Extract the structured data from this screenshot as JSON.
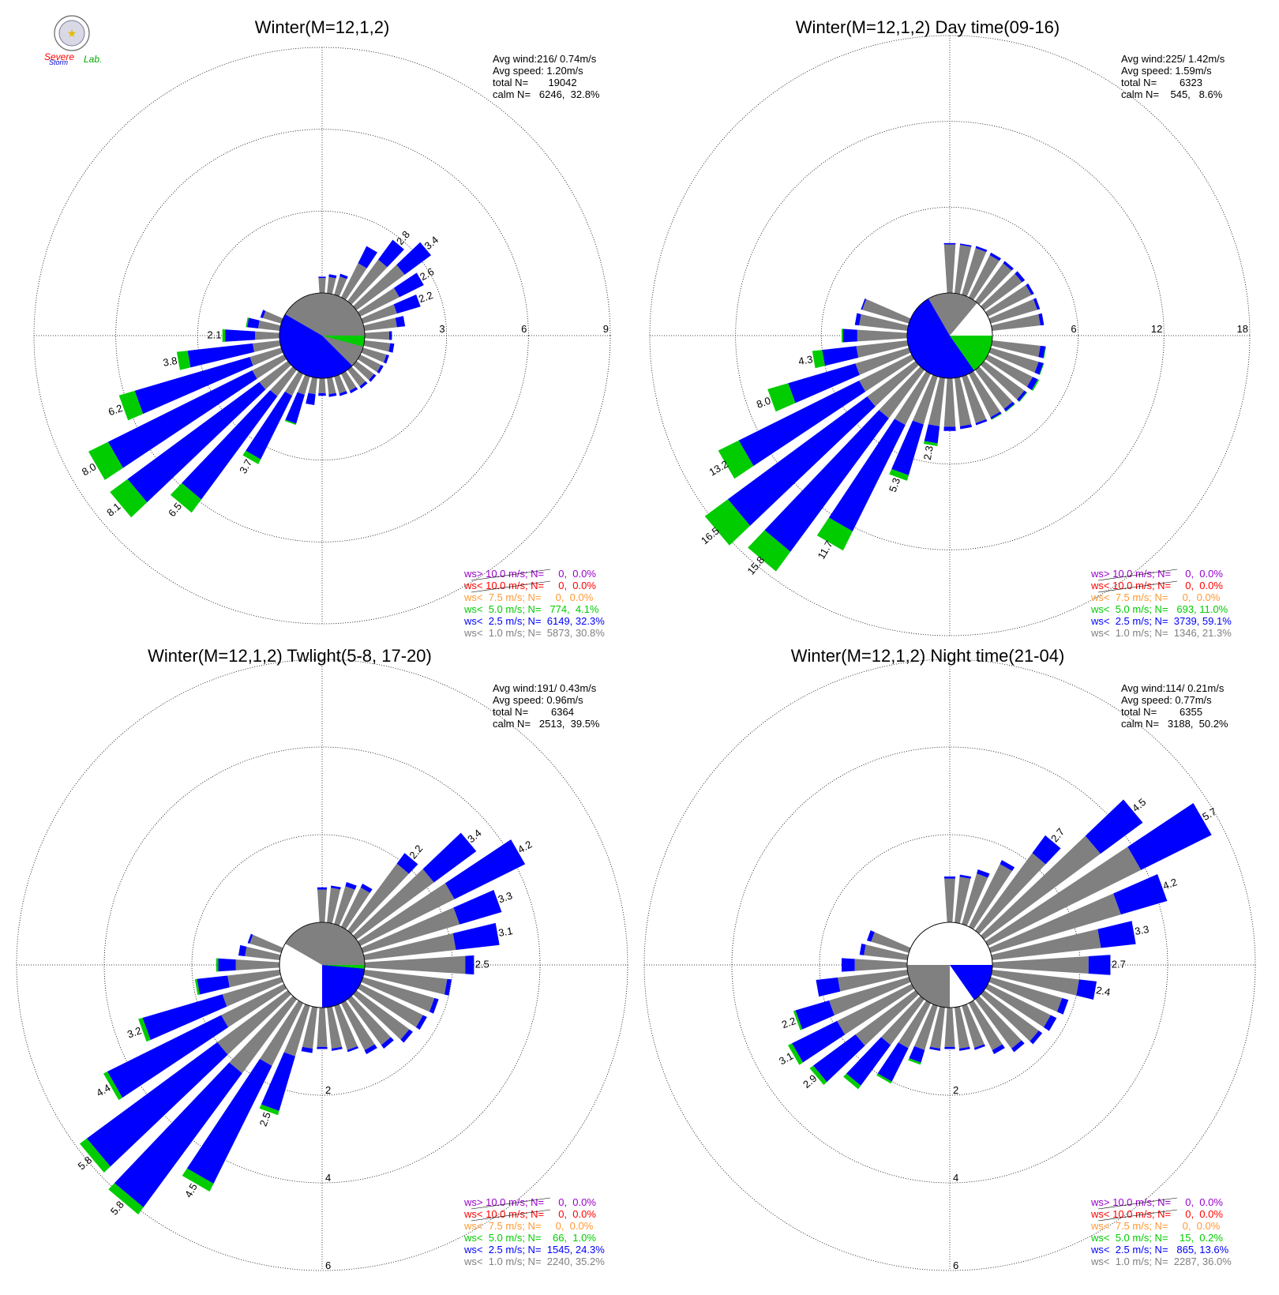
{
  "logo": {
    "text_line1": "Severe",
    "text_line2": "Storm",
    "text_line3": "Lab."
  },
  "colors": {
    "ws_gt_10": "#9900cc",
    "ws_lt_10": "#ff0000",
    "ws_lt_75": "#ff9933",
    "ws_lt_50": "#00cc00",
    "ws_lt_25": "#0000ff",
    "ws_lt_10_calm": "#808080"
  },
  "chart_data": [
    {
      "type": "windrose",
      "title": "Winter(M=12,1,2)",
      "stats": [
        "Avg wind:216/ 0.74m/s",
        "Avg speed: 1.20m/s",
        "total N=       19042",
        "calm N=   6246,  32.8%"
      ],
      "ring_labels": [
        "3",
        "6",
        "9"
      ],
      "ring_values": [
        3,
        6,
        9
      ],
      "legend": [
        "ws> 10.0 m/s; N=     0,  0.0%",
        "ws< 10.0 m/s; N=     0,  0.0%",
        "ws<  7.5 m/s; N=     0,  0.0%",
        "ws<  5.0 m/s; N=   774,  4.1%",
        "ws<  2.5 m/s; N=  6149, 32.3%",
        "ws<  1.0 m/s; N=  5873, 30.8%"
      ],
      "calm_pie": [
        {
          "bin": "ws<  1.0 m/s",
          "start": 300,
          "end": 495
        },
        {
          "bin": "ws<  2.5 m/s",
          "start": 135,
          "end": 300
        },
        {
          "bin": "ws<  5.0 m/s",
          "start": 90,
          "end": 105
        }
      ],
      "bars": [
        {
          "dir": 30,
          "v1": 1.4,
          "v2": 2.1,
          "v3": 2.1
        },
        {
          "dir": 40,
          "v1": 1.9,
          "v2": 2.8,
          "v3": 2.8,
          "label": "2.8"
        },
        {
          "dir": 50,
          "v1": 2.2,
          "v2": 3.4,
          "v3": 3.4,
          "label": "3.4"
        },
        {
          "dir": 60,
          "v1": 1.6,
          "v2": 2.6,
          "v3": 2.6,
          "label": "2.6"
        },
        {
          "dir": 70,
          "v1": 1.3,
          "v2": 2.2,
          "v3": 2.2,
          "label": "2.2"
        },
        {
          "dir": 80,
          "v1": 1.2,
          "v2": 1.5,
          "v3": 1.5
        },
        {
          "dir": 90,
          "v1": 0.9,
          "v2": 1.0,
          "v3": 1.0
        },
        {
          "dir": 100,
          "v1": 0.95,
          "v2": 1.1,
          "v3": 1.1
        },
        {
          "dir": 110,
          "v1": 0.9,
          "v2": 1.0,
          "v3": 1.0
        },
        {
          "dir": 120,
          "v1": 0.85,
          "v2": 0.95,
          "v3": 0.95
        },
        {
          "dir": 130,
          "v1": 0.8,
          "v2": 0.9,
          "v3": 0.9
        },
        {
          "dir": 140,
          "v1": 0.75,
          "v2": 0.85,
          "v3": 0.85
        },
        {
          "dir": 150,
          "v1": 0.7,
          "v2": 0.8,
          "v3": 0.8
        },
        {
          "dir": 160,
          "v1": 0.65,
          "v2": 0.75,
          "v3": 0.75
        },
        {
          "dir": 170,
          "v1": 0.6,
          "v2": 0.7,
          "v3": 0.7
        },
        {
          "dir": 180,
          "v1": 0.55,
          "v2": 0.65,
          "v3": 0.65
        },
        {
          "dir": 190,
          "v1": 0.6,
          "v2": 1.0,
          "v3": 1.0
        },
        {
          "dir": 200,
          "v1": 0.7,
          "v2": 1.8,
          "v3": 1.85
        },
        {
          "dir": 210,
          "v1": 0.9,
          "v2": 3.5,
          "v3": 3.7,
          "label": "3.7"
        },
        {
          "dir": 220,
          "v1": 1.2,
          "v2": 5.9,
          "v3": 6.5,
          "label": "6.5"
        },
        {
          "dir": 230,
          "v1": 1.3,
          "v2": 7.3,
          "v3": 8.1,
          "label": "8.1"
        },
        {
          "dir": 240,
          "v1": 1.3,
          "v2": 7.2,
          "v3": 8.0,
          "label": "8.0"
        },
        {
          "dir": 250,
          "v1": 1.2,
          "v2": 5.6,
          "v3": 6.2,
          "label": "6.2"
        },
        {
          "dir": 260,
          "v1": 1.0,
          "v2": 3.4,
          "v3": 3.8,
          "label": "3.8"
        },
        {
          "dir": 270,
          "v1": 0.9,
          "v2": 2.0,
          "v3": 2.1,
          "label": "2.1"
        },
        {
          "dir": 280,
          "v1": 0.8,
          "v2": 1.2,
          "v3": 1.25
        },
        {
          "dir": 290,
          "v1": 0.7,
          "v2": 0.8,
          "v3": 0.8
        },
        {
          "dir": 0,
          "v1": 0.55,
          "v2": 0.6,
          "v3": 0.6
        },
        {
          "dir": 10,
          "v1": 0.6,
          "v2": 0.7,
          "v3": 0.7
        },
        {
          "dir": 20,
          "v1": 0.7,
          "v2": 0.8,
          "v3": 0.8
        }
      ]
    },
    {
      "type": "windrose",
      "title": "Winter(M=12,1,2) Day time(09-16)",
      "stats": [
        "Avg wind:225/ 1.42m/s",
        "Avg speed: 1.59m/s",
        "total N=        6323",
        "calm N=    545,   8.6%"
      ],
      "ring_labels": [
        "6",
        "12",
        "18"
      ],
      "ring_values": [
        6,
        12,
        18
      ],
      "legend": [
        "ws> 10.0 m/s; N=     0,  0.0%",
        "ws< 10.0 m/s; N=     0,  0.0%",
        "ws<  7.5 m/s; N=     0,  0.0%",
        "ws<  5.0 m/s; N=   693, 11.0%",
        "ws<  2.5 m/s; N=  3739, 59.1%",
        "ws<  1.0 m/s; N=  1346, 21.3%"
      ],
      "calm_pie": [
        {
          "bin": "ws<  1.0 m/s",
          "start": 330,
          "end": 400
        },
        {
          "bin": "ws<  2.5 m/s",
          "start": 145,
          "end": 330
        },
        {
          "bin": "ws<  5.0 m/s",
          "start": 90,
          "end": 145
        }
      ],
      "bars": [
        {
          "dir": 0,
          "v1": 3.4,
          "v2": 3.5,
          "v3": 3.5
        },
        {
          "dir": 10,
          "v1": 3.4,
          "v2": 3.5,
          "v3": 3.5
        },
        {
          "dir": 20,
          "v1": 3.4,
          "v2": 3.55,
          "v3": 3.55
        },
        {
          "dir": 30,
          "v1": 3.3,
          "v2": 3.5,
          "v3": 3.5
        },
        {
          "dir": 40,
          "v1": 3.3,
          "v2": 3.5,
          "v3": 3.5
        },
        {
          "dir": 50,
          "v1": 3.3,
          "v2": 3.55,
          "v3": 3.55
        },
        {
          "dir": 60,
          "v1": 3.4,
          "v2": 3.6,
          "v3": 3.6
        },
        {
          "dir": 70,
          "v1": 3.4,
          "v2": 3.6,
          "v3": 3.6
        },
        {
          "dir": 80,
          "v1": 3.4,
          "v2": 3.65,
          "v3": 3.65
        },
        {
          "dir": 100,
          "v1": 3.4,
          "v2": 3.75,
          "v3": 3.8
        },
        {
          "dir": 110,
          "v1": 3.5,
          "v2": 3.85,
          "v3": 3.9
        },
        {
          "dir": 120,
          "v1": 3.5,
          "v2": 3.9,
          "v3": 4.0
        },
        {
          "dir": 130,
          "v1": 3.5,
          "v2": 3.7,
          "v3": 3.75
        },
        {
          "dir": 140,
          "v1": 3.4,
          "v2": 3.6,
          "v3": 3.65
        },
        {
          "dir": 150,
          "v1": 3.4,
          "v2": 3.55,
          "v3": 3.6
        },
        {
          "dir": 160,
          "v1": 3.4,
          "v2": 3.55,
          "v3": 3.55
        },
        {
          "dir": 170,
          "v1": 3.4,
          "v2": 3.6,
          "v3": 3.6
        },
        {
          "dir": 180,
          "v1": 3.4,
          "v2": 3.7,
          "v3": 3.7
        },
        {
          "dir": 190,
          "v1": 3.4,
          "v2": 4.6,
          "v3": 4.8,
          "label": "2.3"
        },
        {
          "dir": 200,
          "v1": 3.5,
          "v2": 7.2,
          "v3": 7.6,
          "label": "5.3"
        },
        {
          "dir": 210,
          "v1": 4.0,
          "v2": 12.3,
          "v3": 13.8,
          "label": "11.7"
        },
        {
          "dir": 220,
          "v1": 4.2,
          "v2": 15.8,
          "v3": 17.5,
          "label": "15.8"
        },
        {
          "dir": 230,
          "v1": 4.2,
          "v2": 16.3,
          "v3": 18.3,
          "label": "16.5"
        },
        {
          "dir": 240,
          "v1": 4.1,
          "v2": 13.5,
          "v3": 15.1,
          "label": "13.2"
        },
        {
          "dir": 250,
          "v1": 3.9,
          "v2": 8.8,
          "v3": 10.3,
          "label": "8.0"
        },
        {
          "dir": 260,
          "v1": 3.6,
          "v2": 6.0,
          "v3": 6.7,
          "label": "4.3"
        },
        {
          "dir": 270,
          "v1": 3.5,
          "v2": 4.5,
          "v3": 4.6
        },
        {
          "dir": 280,
          "v1": 3.4,
          "v2": 3.7,
          "v3": 3.7
        },
        {
          "dir": 290,
          "v1": 3.4,
          "v2": 3.5,
          "v3": 3.5
        }
      ]
    },
    {
      "type": "windrose",
      "title": "Winter(M=12,1,2) Twlight(5-8, 17-20)",
      "stats": [
        "Avg wind:191/ 0.43m/s",
        "Avg speed: 0.96m/s",
        "total N=        6364",
        "calm N=   2513,  39.5%"
      ],
      "ring_labels": [
        "2",
        "4",
        "6"
      ],
      "ring_values": [
        2,
        4,
        6
      ],
      "legend": [
        "ws> 10.0 m/s; N=     0,  0.0%",
        "ws< 10.0 m/s; N=     0,  0.0%",
        "ws<  7.5 m/s; N=     0,  0.0%",
        "ws<  5.0 m/s; N=    66,  1.0%",
        "ws<  2.5 m/s; N=  1545, 24.3%",
        "ws<  1.0 m/s; N=  2240, 35.2%"
      ],
      "calm_pie": [
        {
          "bin": "ws<  1.0 m/s",
          "start": 300,
          "end": 500
        },
        {
          "bin": "ws<  2.5 m/s",
          "start": 95,
          "end": 180
        },
        {
          "bin": "ws<  5.0 m/s",
          "start": 90,
          "end": 95
        }
      ],
      "bars": [
        {
          "dir": 0,
          "v1": 0.75,
          "v2": 0.8,
          "v3": 0.8
        },
        {
          "dir": 10,
          "v1": 0.8,
          "v2": 0.85,
          "v3": 0.85
        },
        {
          "dir": 20,
          "v1": 0.9,
          "v2": 1.0,
          "v3": 1.0
        },
        {
          "dir": 30,
          "v1": 1.0,
          "v2": 1.1,
          "v3": 1.1
        },
        {
          "dir": 40,
          "v1": 1.9,
          "v2": 2.2,
          "v3": 2.2,
          "label": "2.2"
        },
        {
          "dir": 50,
          "v1": 2.2,
          "v2": 3.4,
          "v3": 3.4,
          "label": "3.4"
        },
        {
          "dir": 60,
          "v1": 2.4,
          "v2": 4.2,
          "v3": 4.2,
          "label": "4.2"
        },
        {
          "dir": 70,
          "v1": 2.3,
          "v2": 3.3,
          "v3": 3.3,
          "label": "3.3"
        },
        {
          "dir": 80,
          "v1": 2.1,
          "v2": 3.1,
          "v3": 3.1,
          "label": "3.1"
        },
        {
          "dir": 90,
          "v1": 2.3,
          "v2": 2.5,
          "v3": 2.5,
          "label": "2.5"
        },
        {
          "dir": 100,
          "v1": 1.9,
          "v2": 2.0,
          "v3": 2.0
        },
        {
          "dir": 110,
          "v1": 1.7,
          "v2": 1.8,
          "v3": 1.8
        },
        {
          "dir": 120,
          "v1": 1.6,
          "v2": 1.7,
          "v3": 1.7
        },
        {
          "dir": 130,
          "v1": 1.5,
          "v2": 1.6,
          "v3": 1.6
        },
        {
          "dir": 140,
          "v1": 1.3,
          "v2": 1.4,
          "v3": 1.4
        },
        {
          "dir": 150,
          "v1": 1.2,
          "v2": 1.3,
          "v3": 1.3
        },
        {
          "dir": 160,
          "v1": 1.05,
          "v2": 1.1,
          "v3": 1.1
        },
        {
          "dir": 170,
          "v1": 0.95,
          "v2": 1.0,
          "v3": 1.0
        },
        {
          "dir": 180,
          "v1": 0.9,
          "v2": 0.95,
          "v3": 0.95
        },
        {
          "dir": 190,
          "v1": 0.95,
          "v2": 1.05,
          "v3": 1.05
        },
        {
          "dir": 200,
          "v1": 1.2,
          "v2": 2.5,
          "v3": 2.6,
          "label": "2.5"
        },
        {
          "dir": 210,
          "v1": 1.6,
          "v2": 4.6,
          "v3": 4.8,
          "label": "4.5"
        },
        {
          "dir": 220,
          "v1": 2.1,
          "v2": 5.9,
          "v3": 6.1,
          "label": "5.8"
        },
        {
          "dir": 230,
          "v1": 2.0,
          "v2": 5.7,
          "v3": 5.9,
          "label": "5.8"
        },
        {
          "dir": 240,
          "v1": 1.6,
          "v2": 4.5,
          "v3": 4.6,
          "label": "4.4"
        },
        {
          "dir": 250,
          "v1": 1.4,
          "v2": 3.3,
          "v3": 3.4,
          "label": "3.2"
        },
        {
          "dir": 260,
          "v1": 1.2,
          "v2": 1.9,
          "v3": 1.95
        },
        {
          "dir": 270,
          "v1": 1.0,
          "v2": 1.4,
          "v3": 1.45
        },
        {
          "dir": 280,
          "v1": 0.8,
          "v2": 0.95,
          "v3": 0.95
        },
        {
          "dir": 290,
          "v1": 0.75,
          "v2": 0.8,
          "v3": 0.8
        }
      ]
    },
    {
      "type": "windrose",
      "title": "Winter(M=12,1,2) Night time(21-04)",
      "stats": [
        "Avg wind:114/ 0.21m/s",
        "Avg speed: 0.77m/s",
        "total N=        6355",
        "calm N=   3188,  50.2%"
      ],
      "ring_labels": [
        "2",
        "4",
        "6"
      ],
      "ring_values": [
        2,
        4,
        6
      ],
      "legend": [
        "ws> 10.0 m/s; N=     0,  0.0%",
        "ws< 10.0 m/s; N=     0,  0.0%",
        "ws<  7.5 m/s; N=     0,  0.0%",
        "ws<  5.0 m/s; N=    15,  0.2%",
        "ws<  2.5 m/s; N=   865, 13.6%",
        "ws<  1.0 m/s; N=  2287, 36.0%"
      ],
      "calm_pie": [
        {
          "bin": "ws<  1.0 m/s",
          "start": 180,
          "end": 270
        },
        {
          "bin": "ws<  2.5 m/s",
          "start": 90,
          "end": 145
        }
      ],
      "bars": [
        {
          "dir": 0,
          "v1": 1.0,
          "v2": 1.05,
          "v3": 1.05
        },
        {
          "dir": 10,
          "v1": 1.05,
          "v2": 1.1,
          "v3": 1.1
        },
        {
          "dir": 20,
          "v1": 1.2,
          "v2": 1.3,
          "v3": 1.3
        },
        {
          "dir": 30,
          "v1": 1.6,
          "v2": 1.7,
          "v3": 1.7
        },
        {
          "dir": 40,
          "v1": 2.2,
          "v2": 2.7,
          "v3": 2.7,
          "label": "2.7"
        },
        {
          "dir": 50,
          "v1": 3.3,
          "v2": 4.5,
          "v3": 4.5,
          "label": "4.5"
        },
        {
          "dir": 60,
          "v1": 3.9,
          "v2": 5.7,
          "v3": 5.7,
          "label": "5.7"
        },
        {
          "dir": 70,
          "v1": 3.1,
          "v2": 4.2,
          "v3": 4.2,
          "label": "4.2"
        },
        {
          "dir": 80,
          "v1": 2.5,
          "v2": 3.3,
          "v3": 3.3,
          "label": "3.3"
        },
        {
          "dir": 90,
          "v1": 2.2,
          "v2": 2.7,
          "v3": 2.7,
          "label": "2.7"
        },
        {
          "dir": 100,
          "v1": 2.0,
          "v2": 2.4,
          "v3": 2.4,
          "label": "2.4"
        },
        {
          "dir": 110,
          "v1": 1.7,
          "v2": 1.85,
          "v3": 1.85
        },
        {
          "dir": 120,
          "v1": 1.6,
          "v2": 1.75,
          "v3": 1.75
        },
        {
          "dir": 130,
          "v1": 1.55,
          "v2": 1.65,
          "v3": 1.65
        },
        {
          "dir": 140,
          "v1": 1.4,
          "v2": 1.5,
          "v3": 1.5
        },
        {
          "dir": 150,
          "v1": 1.2,
          "v2": 1.3,
          "v3": 1.3
        },
        {
          "dir": 160,
          "v1": 1.0,
          "v2": 1.05,
          "v3": 1.05
        },
        {
          "dir": 170,
          "v1": 0.95,
          "v2": 1.0,
          "v3": 1.0
        },
        {
          "dir": 180,
          "v1": 0.9,
          "v2": 0.95,
          "v3": 0.95
        },
        {
          "dir": 190,
          "v1": 0.95,
          "v2": 1.0,
          "v3": 1.0
        },
        {
          "dir": 200,
          "v1": 1.05,
          "v2": 1.35,
          "v3": 1.4
        },
        {
          "dir": 210,
          "v1": 1.15,
          "v2": 2.0,
          "v3": 2.05
        },
        {
          "dir": 220,
          "v1": 1.3,
          "v2": 2.45,
          "v3": 2.55
        },
        {
          "dir": 230,
          "v1": 1.7,
          "v2": 2.9,
          "v3": 3.0,
          "label": "2.9"
        },
        {
          "dir": 240,
          "v1": 1.9,
          "v2": 3.05,
          "v3": 3.15,
          "label": "3.1"
        },
        {
          "dir": 250,
          "v1": 1.9,
          "v2": 2.7,
          "v3": 2.75,
          "label": "2.2"
        },
        {
          "dir": 260,
          "v1": 1.6,
          "v2": 2.1,
          "v3": 2.1
        },
        {
          "dir": 270,
          "v1": 1.2,
          "v2": 1.5,
          "v3": 1.5
        },
        {
          "dir": 280,
          "v1": 1.0,
          "v2": 1.1,
          "v3": 1.1
        },
        {
          "dir": 290,
          "v1": 0.9,
          "v2": 1.0,
          "v3": 1.0
        }
      ]
    }
  ]
}
